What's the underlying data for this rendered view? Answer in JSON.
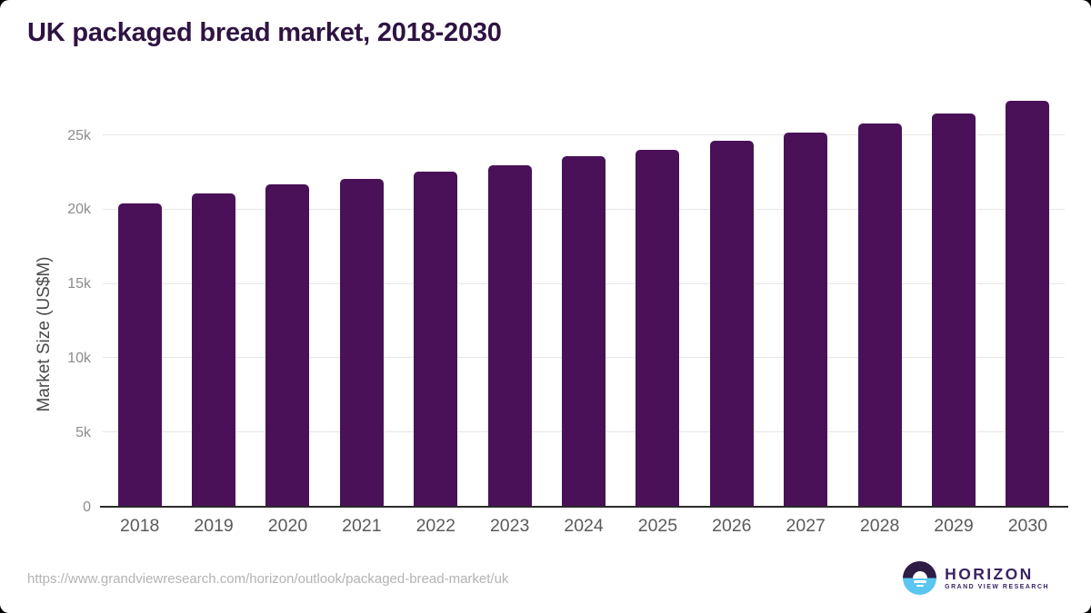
{
  "page": {
    "title": "UK packaged bread market, 2018-2030",
    "source_url": "https://www.grandviewresearch.com/horizon/outlook/packaged-bread-market/uk"
  },
  "branding": {
    "logo_name": "HORIZON",
    "logo_subtitle": "GRAND VIEW RESEARCH"
  },
  "colors": {
    "title": "#2f1342",
    "bar": "#4a1158",
    "gridline": "#e6e6e8",
    "axis_line": "#2b2b2b",
    "y_tick": "#8c8c8c",
    "x_tick": "#5a5a5a",
    "y_axis_title": "#4a4a4a",
    "url_text": "#b3b3b3",
    "logo_purple": "#3a2364",
    "logo_dark": "#2d1c44",
    "logo_blue": "#5bc6f0"
  },
  "chart_data": {
    "type": "bar",
    "title": "UK packaged bread market, 2018-2030",
    "series_name": "Market Size",
    "categories": [
      "2018",
      "2019",
      "2020",
      "2021",
      "2022",
      "2023",
      "2024",
      "2025",
      "2026",
      "2027",
      "2028",
      "2029",
      "2030"
    ],
    "values": [
      20400,
      21100,
      21700,
      22050,
      22550,
      23000,
      23600,
      24000,
      24650,
      25200,
      25800,
      26500,
      27300
    ],
    "xlabel": "",
    "ylabel": "Market Size (US$M)",
    "yticks": [
      {
        "value": 0,
        "label": "0"
      },
      {
        "value": 5000,
        "label": "5k"
      },
      {
        "value": 10000,
        "label": "10k"
      },
      {
        "value": 15000,
        "label": "15k"
      },
      {
        "value": 20000,
        "label": "20k"
      },
      {
        "value": 25000,
        "label": "25k"
      }
    ],
    "ylim": [
      0,
      28000
    ],
    "grid": "horizontal",
    "legend": "none",
    "bar_color": "#4a1158"
  }
}
